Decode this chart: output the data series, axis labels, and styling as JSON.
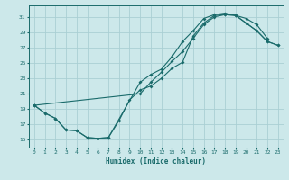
{
  "xlabel": "Humidex (Indice chaleur)",
  "xlim": [
    -0.5,
    23.5
  ],
  "ylim": [
    14.0,
    32.5
  ],
  "xticks": [
    0,
    1,
    2,
    3,
    4,
    5,
    6,
    7,
    8,
    9,
    10,
    11,
    12,
    13,
    14,
    15,
    16,
    17,
    18,
    19,
    20,
    21,
    22,
    23
  ],
  "yticks": [
    15,
    17,
    19,
    21,
    23,
    25,
    27,
    29,
    31
  ],
  "bg_color": "#cce8ea",
  "grid_color": "#aacfd4",
  "line_color": "#1a6b6b",
  "line1_x": [
    0,
    1,
    2,
    3,
    4,
    5,
    6,
    7,
    8,
    9,
    10,
    11,
    12,
    13,
    14,
    15,
    16,
    17,
    18,
    19,
    20,
    21,
    22,
    23
  ],
  "line1_y": [
    19.5,
    18.5,
    17.8,
    16.3,
    16.2,
    15.3,
    15.2,
    15.3,
    17.5,
    20.2,
    21.5,
    22.0,
    23.0,
    24.3,
    25.1,
    28.5,
    30.2,
    31.2,
    31.3,
    31.2,
    30.2,
    29.2,
    27.8,
    27.3
  ],
  "line2_x": [
    0,
    1,
    2,
    3,
    4,
    5,
    6,
    7,
    10,
    11,
    12,
    13,
    14,
    15,
    16,
    17,
    18,
    19,
    20,
    21,
    22
  ],
  "line2_y": [
    19.5,
    18.5,
    17.8,
    16.3,
    16.2,
    15.3,
    15.2,
    15.3,
    22.5,
    23.5,
    24.2,
    25.8,
    27.8,
    29.2,
    30.8,
    31.3,
    31.5,
    31.2,
    30.8,
    30.0,
    28.2
  ],
  "line3_x": [
    0,
    10,
    11,
    12,
    13,
    14,
    15,
    16,
    17,
    18,
    19,
    20,
    21,
    22,
    23
  ],
  "line3_y": [
    19.5,
    21.0,
    22.5,
    23.8,
    25.2,
    26.5,
    28.2,
    30.0,
    31.0,
    31.3,
    31.2,
    30.2,
    29.2,
    27.8,
    27.3
  ]
}
